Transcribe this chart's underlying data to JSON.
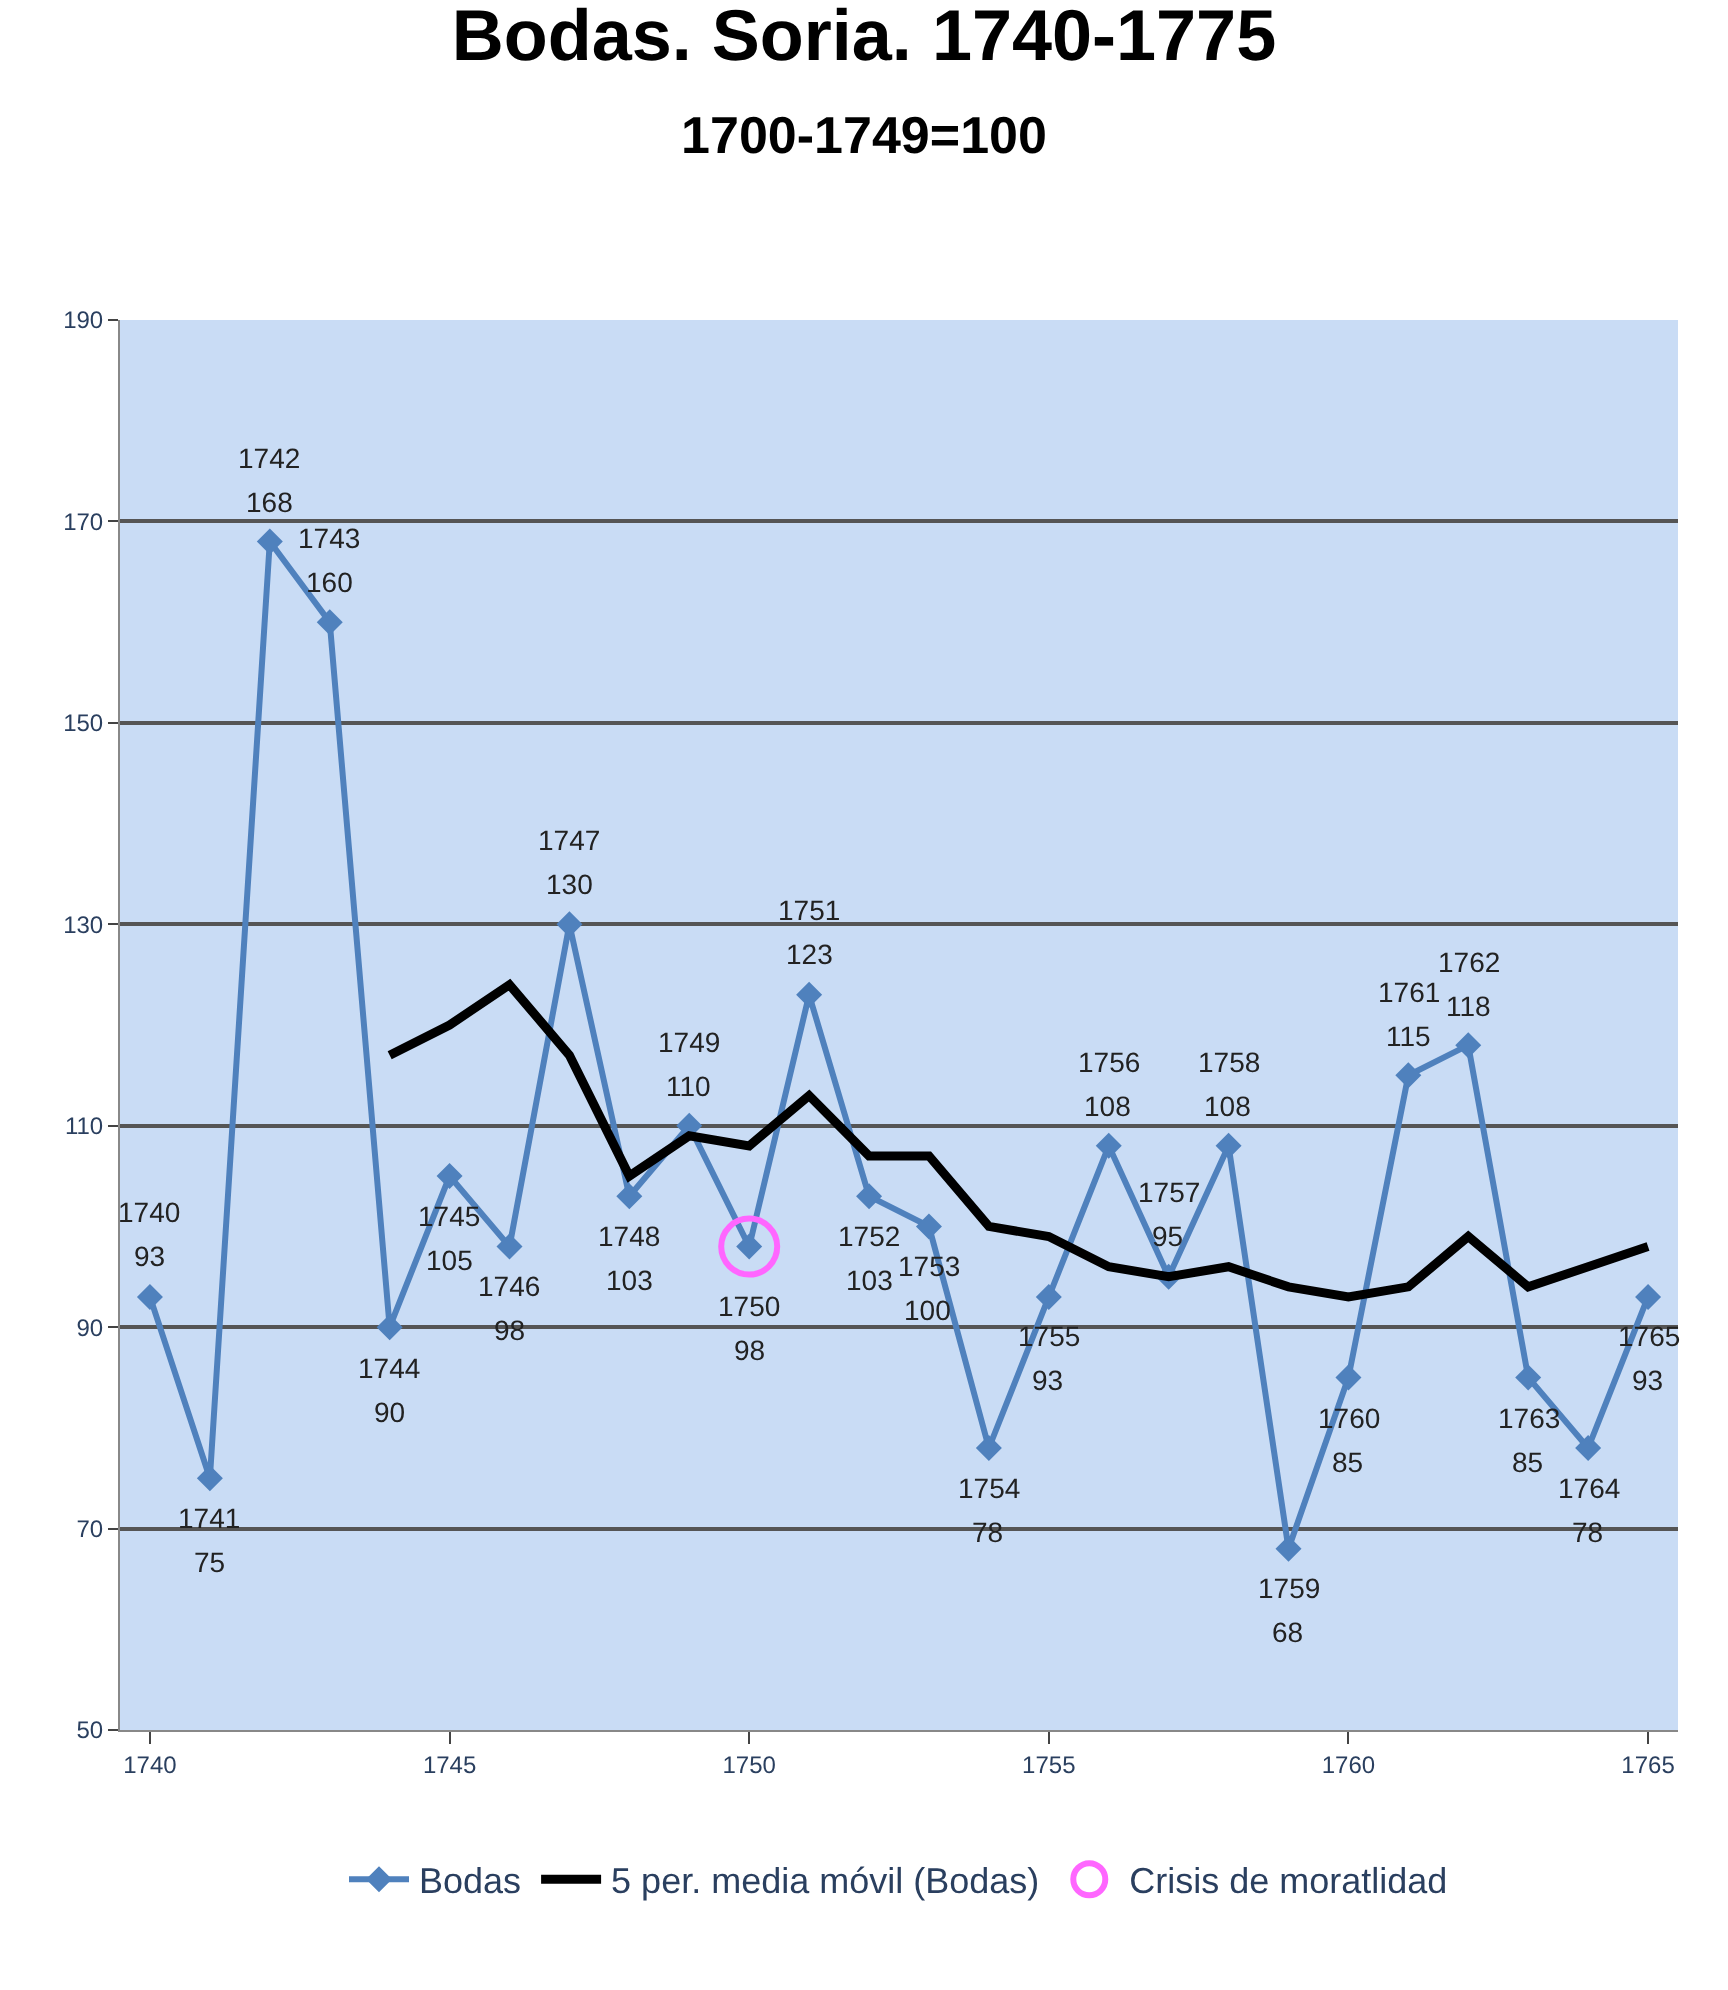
{
  "chart_data": {
    "type": "line",
    "title": "Bodas. Soria. 1740-1775",
    "subtitle": "1700-1749=100",
    "x": [
      1740,
      1741,
      1742,
      1743,
      1744,
      1745,
      1746,
      1747,
      1748,
      1749,
      1750,
      1751,
      1752,
      1753,
      1754,
      1755,
      1756,
      1757,
      1758,
      1759,
      1760,
      1761,
      1762,
      1763,
      1764,
      1765
    ],
    "series": [
      {
        "name": "Bodas",
        "color": "#4f81bd",
        "marker": "diamond",
        "values": [
          93,
          75,
          168,
          160,
          90,
          105,
          98,
          130,
          103,
          110,
          98,
          123,
          103,
          100,
          78,
          93,
          108,
          95,
          108,
          68,
          85,
          115,
          118,
          85,
          78,
          93
        ],
        "data_labels": true
      },
      {
        "name": "5 per. media móvil (Bodas)",
        "color": "#000000",
        "marker": "none",
        "x": [
          1744,
          1745,
          1746,
          1747,
          1748,
          1749,
          1750,
          1751,
          1752,
          1753,
          1754,
          1755,
          1756,
          1757,
          1758,
          1759,
          1760,
          1761,
          1762,
          1763,
          1764,
          1765
        ],
        "values": [
          117,
          120,
          124,
          117,
          105,
          109,
          108,
          113,
          107,
          107,
          100,
          99,
          96,
          95,
          96,
          94,
          93,
          94,
          99,
          94,
          96,
          98
        ]
      },
      {
        "name": "Crisis de moratlidad",
        "type": "scatter",
        "color": "#ff66ff",
        "marker": "circle",
        "x": [
          1750
        ],
        "values": [
          98
        ]
      }
    ],
    "xlim": [
      1739.5,
      1765.5
    ],
    "xticks": [
      1740,
      1745,
      1750,
      1755,
      1760,
      1765
    ],
    "ylim": [
      50,
      190
    ],
    "yticks": [
      50,
      70,
      90,
      110,
      130,
      150,
      170,
      190
    ],
    "grid": "y",
    "legend": "bottom",
    "annotations": [
      {
        "text": "1740",
        "x": 1740,
        "y": 93
      },
      {
        "text": "1741",
        "x": 1741,
        "y": 75
      },
      {
        "text": "1742",
        "x": 1742,
        "y": 168
      },
      {
        "text": "1743",
        "x": 1743,
        "y": 160
      },
      {
        "text": "1744",
        "x": 1744,
        "y": 90
      },
      {
        "text": "1745",
        "x": 1745,
        "y": 105
      },
      {
        "text": "1746",
        "x": 1746,
        "y": 98
      },
      {
        "text": "1747",
        "x": 1747,
        "y": 130
      },
      {
        "text": "1748",
        "x": 1748,
        "y": 103
      },
      {
        "text": "1749",
        "x": 1749,
        "y": 110
      },
      {
        "text": "1750",
        "x": 1750,
        "y": 98
      },
      {
        "text": "1751",
        "x": 1751,
        "y": 123
      },
      {
        "text": "1752",
        "x": 1752,
        "y": 103
      },
      {
        "text": "1753",
        "x": 1753,
        "y": 100
      },
      {
        "text": "1754",
        "x": 1754,
        "y": 78
      },
      {
        "text": "1755",
        "x": 1755,
        "y": 93
      },
      {
        "text": "1756",
        "x": 1756,
        "y": 108
      },
      {
        "text": "1757",
        "x": 1757,
        "y": 95
      },
      {
        "text": "1758",
        "x": 1758,
        "y": 108
      },
      {
        "text": "1759",
        "x": 1759,
        "y": 68
      },
      {
        "text": "1760",
        "x": 1760,
        "y": 85
      },
      {
        "text": "1761",
        "x": 1761,
        "y": 115
      },
      {
        "text": "1762",
        "x": 1762,
        "y": 118
      },
      {
        "text": "1763",
        "x": 1763,
        "y": 85
      },
      {
        "text": "1764",
        "x": 1764,
        "y": 78
      },
      {
        "text": "1765",
        "x": 1765,
        "y": 93
      }
    ]
  }
}
